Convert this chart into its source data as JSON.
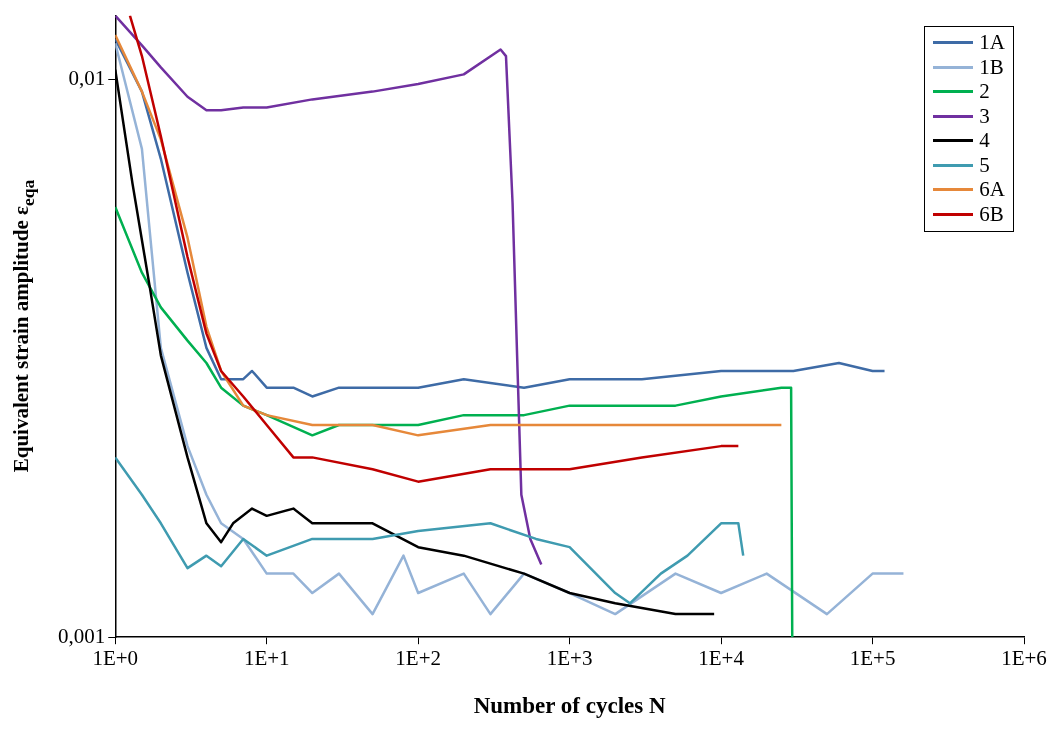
{
  "chart_data": {
    "type": "line",
    "xlabel": "Number of cycles N",
    "ylabel": "Equivalent strain amplitude ε$_{eqa}$",
    "log": "xy",
    "grid": false,
    "legend": "top right",
    "marker": "none",
    "line_style": "solid",
    "xlim": [
      1,
      1000000
    ],
    "xticks": [
      {
        "value": 1,
        "label": "1E+0"
      },
      {
        "value": 10,
        "label": "1E+1"
      },
      {
        "value": 100,
        "label": "1E+2"
      },
      {
        "value": 1000,
        "label": "1E+3"
      },
      {
        "value": 10000,
        "label": "1E+4"
      },
      {
        "value": 100000,
        "label": "1E+5"
      },
      {
        "value": 1000000,
        "label": "1E+6"
      }
    ],
    "ylim": [
      0.001,
      0.013
    ],
    "yticks": [
      {
        "value": 0.001,
        "label": "0,001"
      },
      {
        "value": 0.01,
        "label": "0,01"
      }
    ],
    "series": [
      {
        "name": "1A",
        "color": "#3e6ba6",
        "x": [
          1,
          1.5,
          2,
          3,
          4,
          5,
          7,
          8,
          10,
          15,
          20,
          30,
          50,
          100,
          200,
          500,
          1000,
          3000,
          10000,
          30000,
          60000,
          100000,
          120000
        ],
        "values": [
          0.0118,
          0.0095,
          0.0072,
          0.0045,
          0.0033,
          0.0029,
          0.0029,
          0.003,
          0.0028,
          0.0028,
          0.0027,
          0.0028,
          0.0028,
          0.0028,
          0.0029,
          0.0028,
          0.0029,
          0.0029,
          0.003,
          0.003,
          0.0031,
          0.003,
          0.003
        ]
      },
      {
        "name": "1B",
        "color": "#95b3d7",
        "x": [
          1,
          1.5,
          2,
          3,
          4,
          5,
          7,
          10,
          15,
          20,
          30,
          50,
          80,
          100,
          200,
          300,
          500,
          1000,
          2000,
          5000,
          10000,
          20000,
          50000,
          100000,
          160000
        ],
        "values": [
          0.0116,
          0.0075,
          0.0033,
          0.0022,
          0.0018,
          0.0016,
          0.0015,
          0.0013,
          0.0013,
          0.0012,
          0.0013,
          0.0011,
          0.0014,
          0.0012,
          0.0013,
          0.0011,
          0.0013,
          0.0012,
          0.0011,
          0.0013,
          0.0012,
          0.0013,
          0.0011,
          0.0013,
          0.0013
        ]
      },
      {
        "name": "2",
        "color": "#00b050",
        "x": [
          1,
          1.5,
          2,
          3,
          4,
          5,
          7,
          10,
          20,
          30,
          50,
          100,
          200,
          500,
          1000,
          5000,
          10000,
          25000,
          29000,
          29500
        ],
        "values": [
          0.0059,
          0.0045,
          0.0039,
          0.0034,
          0.0031,
          0.0028,
          0.0026,
          0.0025,
          0.0023,
          0.0024,
          0.0024,
          0.0024,
          0.0025,
          0.0025,
          0.0026,
          0.0026,
          0.0027,
          0.0028,
          0.0028,
          0.001
        ]
      },
      {
        "name": "3",
        "color": "#7030a0",
        "x": [
          1,
          1.5,
          2,
          3,
          4,
          5,
          7,
          10,
          20,
          50,
          100,
          200,
          350,
          380,
          420,
          450,
          480,
          550,
          650
        ],
        "values": [
          0.013,
          0.0115,
          0.0105,
          0.0093,
          0.0088,
          0.0088,
          0.0089,
          0.0089,
          0.0092,
          0.0095,
          0.0098,
          0.0102,
          0.0113,
          0.011,
          0.006,
          0.0032,
          0.0018,
          0.0015,
          0.00135
        ]
      },
      {
        "name": "4",
        "color": "#000000",
        "x": [
          1,
          1.3,
          1.7,
          2,
          3,
          4,
          5,
          6,
          8,
          10,
          15,
          20,
          50,
          100,
          200,
          500,
          1000,
          2000,
          5000,
          9000
        ],
        "values": [
          0.0104,
          0.0065,
          0.0042,
          0.0032,
          0.0021,
          0.0016,
          0.00148,
          0.0016,
          0.0017,
          0.00165,
          0.0017,
          0.0016,
          0.0016,
          0.00145,
          0.0014,
          0.0013,
          0.0012,
          0.00115,
          0.0011,
          0.0011
        ]
      },
      {
        "name": "5",
        "color": "#3f9bb0",
        "x": [
          1,
          1.5,
          2,
          3,
          4,
          5,
          7,
          10,
          20,
          50,
          100,
          300,
          600,
          1000,
          2000,
          2500,
          4000,
          6000,
          10000,
          13000,
          14000
        ],
        "values": [
          0.0021,
          0.0018,
          0.0016,
          0.00133,
          0.0014,
          0.00134,
          0.0015,
          0.0014,
          0.0015,
          0.0015,
          0.00155,
          0.0016,
          0.0015,
          0.00145,
          0.0012,
          0.00115,
          0.0013,
          0.0014,
          0.0016,
          0.0016,
          0.0014
        ]
      },
      {
        "name": "6A",
        "color": "#e6883a",
        "x": [
          1,
          1.5,
          2,
          3,
          4,
          5,
          7,
          10,
          20,
          50,
          100,
          300,
          1000,
          3000,
          10000,
          25000
        ],
        "values": [
          0.012,
          0.0095,
          0.0078,
          0.0052,
          0.0036,
          0.003,
          0.0026,
          0.0025,
          0.0024,
          0.0024,
          0.0023,
          0.0024,
          0.0024,
          0.0024,
          0.0024,
          0.0024
        ]
      },
      {
        "name": "6B",
        "color": "#c00000",
        "x": [
          1.25,
          1.5,
          2,
          3,
          4,
          5,
          7,
          10,
          15,
          20,
          50,
          100,
          300,
          1000,
          3000,
          10000,
          13000
        ],
        "values": [
          0.013,
          0.011,
          0.0079,
          0.0048,
          0.0035,
          0.003,
          0.0027,
          0.0024,
          0.0021,
          0.0021,
          0.002,
          0.0019,
          0.002,
          0.002,
          0.0021,
          0.0022,
          0.0022
        ]
      }
    ]
  }
}
